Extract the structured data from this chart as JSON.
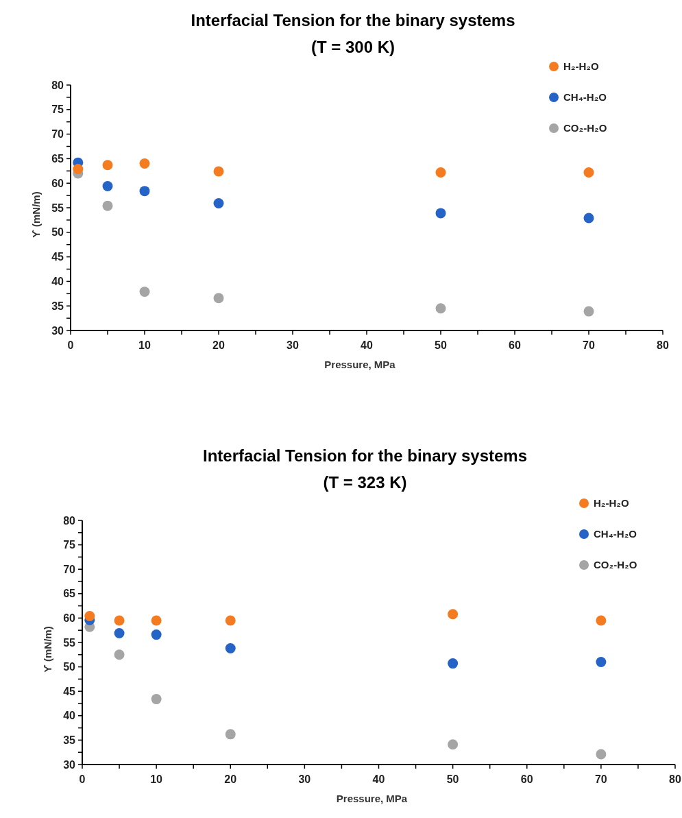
{
  "chart_data": [
    {
      "type": "scatter",
      "title": "Interfacial Tension for the binary systems",
      "subtitle": "(T = 300 K)",
      "xlabel": "Pressure, MPa",
      "ylabel": "ϒ (mN/m)",
      "marker": "circle",
      "legend": "top right",
      "grid": false,
      "x": [
        1,
        5,
        10,
        20,
        50,
        70
      ],
      "xlim": [
        0,
        80
      ],
      "xticks": [
        0,
        {
          "value": 5,
          "label": null
        },
        10,
        {
          "value": 15,
          "label": null
        },
        20,
        {
          "value": 25,
          "label": null
        },
        30,
        {
          "value": 35,
          "label": null
        },
        40,
        {
          "value": 45,
          "label": null
        },
        50,
        {
          "value": 55,
          "label": null
        },
        60,
        {
          "value": 65,
          "label": null
        },
        70,
        {
          "value": 75,
          "label": null
        },
        80
      ],
      "ylim": [
        30,
        80
      ],
      "yticks": [
        30,
        {
          "value": 32.5,
          "label": null
        },
        35,
        {
          "value": 37.5,
          "label": null
        },
        40,
        {
          "value": 42.5,
          "label": null
        },
        45,
        {
          "value": 47.5,
          "label": null
        },
        50,
        {
          "value": 52.5,
          "label": null
        },
        55,
        {
          "value": 57.5,
          "label": null
        },
        60,
        {
          "value": 62.5,
          "label": null
        },
        65,
        {
          "value": 67.5,
          "label": null
        },
        70,
        {
          "value": 72.5,
          "label": null
        },
        75,
        {
          "value": 77.5,
          "label": null
        },
        80
      ],
      "series": [
        {
          "name": "H₂-H₂O",
          "color": "#f47b20",
          "values": [
            62.9,
            63.7,
            64.0,
            62.4,
            62.2,
            62.2
          ]
        },
        {
          "name": "CH₄-H₂O",
          "color": "#2563c7",
          "values": [
            64.2,
            59.4,
            58.4,
            55.9,
            53.9,
            52.9
          ]
        },
        {
          "name": "CO₂-H₂O",
          "color": "#a5a5a5",
          "values": [
            62.0,
            55.4,
            37.9,
            36.6,
            34.5,
            33.9
          ]
        }
      ]
    },
    {
      "type": "scatter",
      "title": "Interfacial Tension for the binary systems",
      "subtitle": "(T = 323 K)",
      "xlabel": "Pressure, MPa",
      "ylabel": "ϒ (mN/m)",
      "marker": "circle",
      "legend": "top right",
      "grid": false,
      "x": [
        1,
        5,
        10,
        20,
        50,
        70
      ],
      "xlim": [
        0,
        80
      ],
      "xticks": [
        0,
        {
          "value": 5,
          "label": null
        },
        10,
        {
          "value": 15,
          "label": null
        },
        20,
        {
          "value": 25,
          "label": null
        },
        30,
        {
          "value": 35,
          "label": null
        },
        40,
        {
          "value": 45,
          "label": null
        },
        50,
        {
          "value": 55,
          "label": null
        },
        60,
        {
          "value": 65,
          "label": null
        },
        70,
        {
          "value": 75,
          "label": null
        },
        80
      ],
      "ylim": [
        30,
        80
      ],
      "yticks": [
        30,
        {
          "value": 32.5,
          "label": null
        },
        35,
        {
          "value": 37.5,
          "label": null
        },
        40,
        {
          "value": 42.5,
          "label": null
        },
        45,
        {
          "value": 47.5,
          "label": null
        },
        50,
        {
          "value": 52.5,
          "label": null
        },
        55,
        {
          "value": 57.5,
          "label": null
        },
        60,
        {
          "value": 62.5,
          "label": null
        },
        65,
        {
          "value": 67.5,
          "label": null
        },
        70,
        {
          "value": 72.5,
          "label": null
        },
        75,
        {
          "value": 77.5,
          "label": null
        },
        80
      ],
      "series": [
        {
          "name": "H₂-H₂O",
          "color": "#f47b20",
          "values": [
            60.4,
            59.5,
            59.5,
            59.5,
            60.8,
            59.5
          ]
        },
        {
          "name": "CH₄-H₂O",
          "color": "#2563c7",
          "values": [
            59.6,
            56.9,
            56.6,
            53.8,
            50.7,
            51.0
          ]
        },
        {
          "name": "CO₂-H₂O",
          "color": "#a5a5a5",
          "values": [
            58.2,
            52.5,
            43.4,
            36.2,
            34.1,
            32.1
          ]
        }
      ]
    }
  ]
}
